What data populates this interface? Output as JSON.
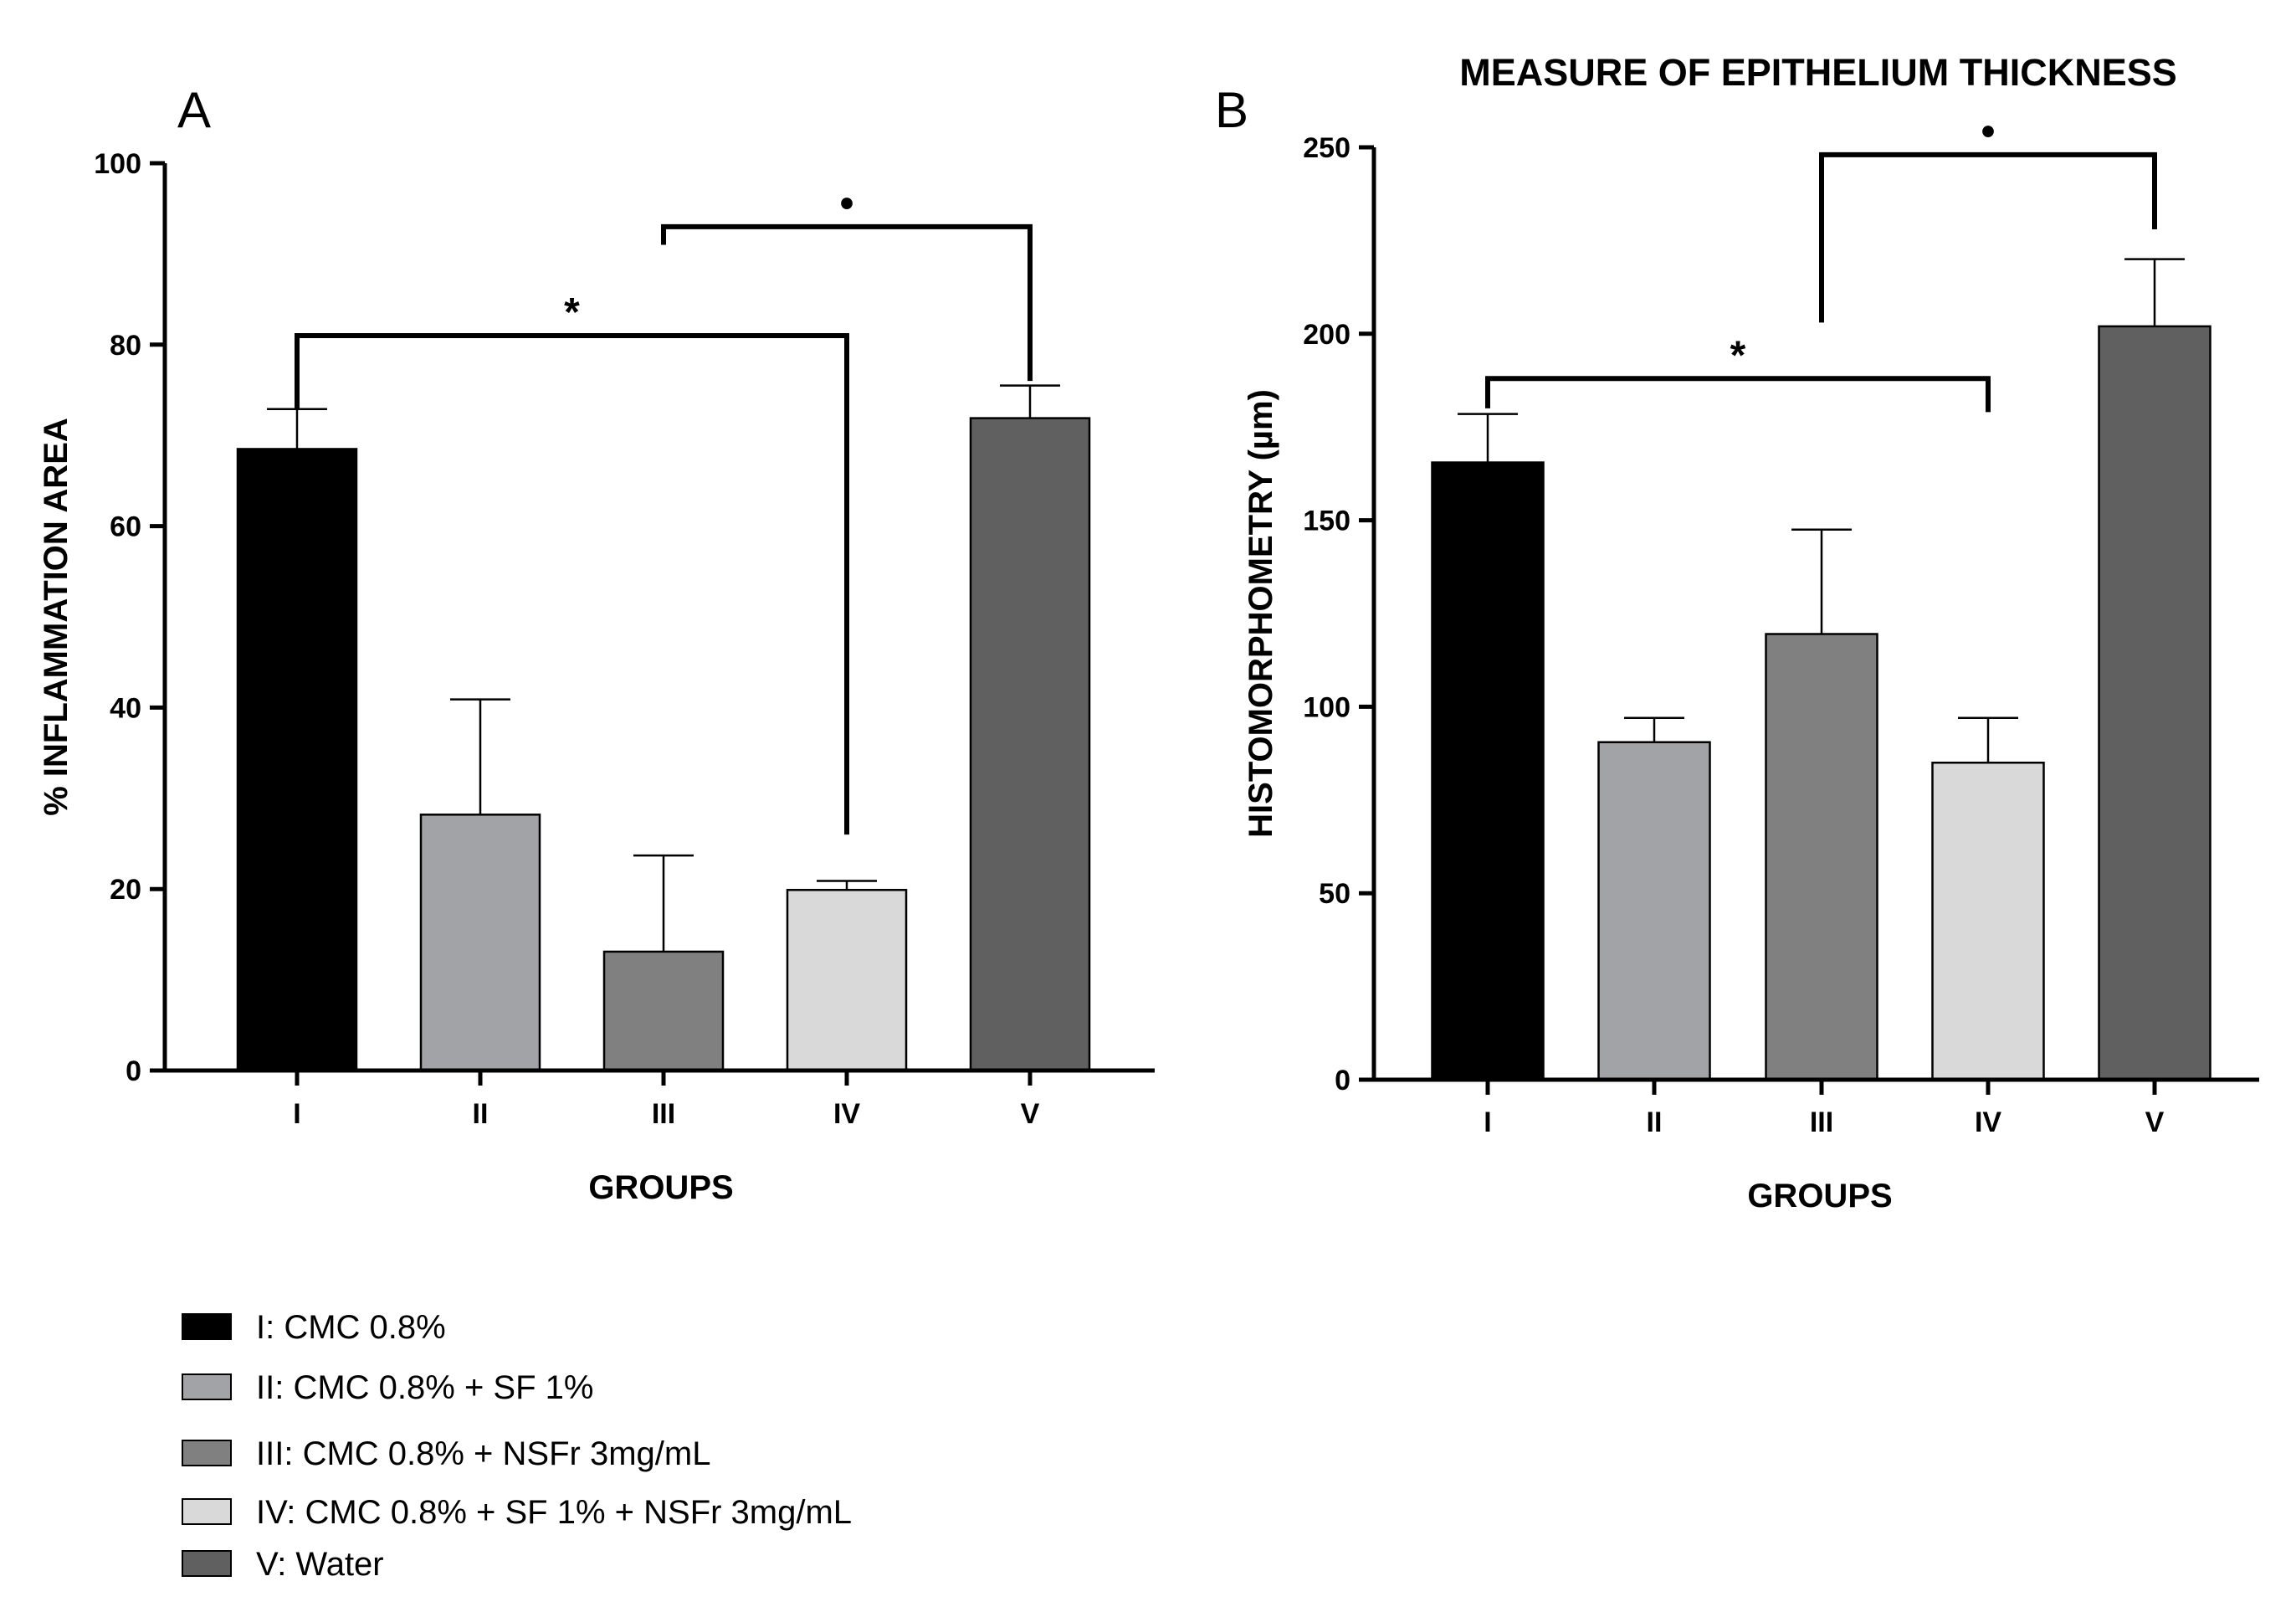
{
  "legend": [
    {
      "label": "I: CMC 0.8%",
      "color": "#000000"
    },
    {
      "label": "II: CMC 0.8% + SF 1%",
      "color": "#a2a3a7"
    },
    {
      "label": "III: CMC 0.8% + NSFr 3mg/mL",
      "color": "#808080"
    },
    {
      "label": "IV: CMC 0.8% + SF 1% + NSFr 3mg/mL",
      "color": "#d9d9d9"
    },
    {
      "label": "V: Water",
      "color": "#606060"
    }
  ],
  "chart_data": [
    {
      "type": "bar",
      "panel": "A",
      "title": "",
      "categories": [
        "I",
        "II",
        "III",
        "IV",
        "V"
      ],
      "values": [
        68.5,
        28.2,
        13.1,
        19.9,
        71.9
      ],
      "errors": [
        4.4,
        12.7,
        10.6,
        1.0,
        3.6
      ],
      "colors": [
        "#000000",
        "#a2a3a7",
        "#808080",
        "#d9d9d9",
        "#606060"
      ],
      "xlabel": "GROUPS",
      "ylabel": "% INFLAMMATION AREA",
      "ylim": [
        0,
        100
      ],
      "yticks": [
        0,
        20,
        40,
        60,
        80,
        100
      ],
      "significance": [
        {
          "from": "I",
          "to": "IV",
          "label": "*",
          "level": 81,
          "from_end": 73,
          "to_end": 26
        },
        {
          "from": "III",
          "to": "V",
          "label": "•",
          "level": 93,
          "from_end": 91,
          "to_end": 76
        }
      ]
    },
    {
      "type": "bar",
      "panel": "B",
      "title": "MEASURE OF EPITHELIUM THICKNESS",
      "categories": [
        "I",
        "II",
        "III",
        "IV",
        "V"
      ],
      "values": [
        165.5,
        90.5,
        119.5,
        85.0,
        202.0
      ],
      "errors": [
        13.0,
        6.5,
        28.0,
        12.0,
        18.0
      ],
      "colors": [
        "#000000",
        "#a2a3a7",
        "#808080",
        "#d9d9d9",
        "#606060"
      ],
      "xlabel": "GROUPS",
      "ylabel": "HISTOMORPHOMETRY (µm)",
      "ylim": [
        0,
        250
      ],
      "yticks": [
        0,
        50,
        100,
        150,
        200,
        250
      ],
      "significance": [
        {
          "from": "I",
          "to": "IV",
          "label": "*",
          "level": 188,
          "from_end": 180,
          "to_end": 179
        },
        {
          "from": "III",
          "to": "V",
          "label": "•",
          "level": 248,
          "from_end": 203,
          "to_end": 228
        }
      ]
    }
  ]
}
